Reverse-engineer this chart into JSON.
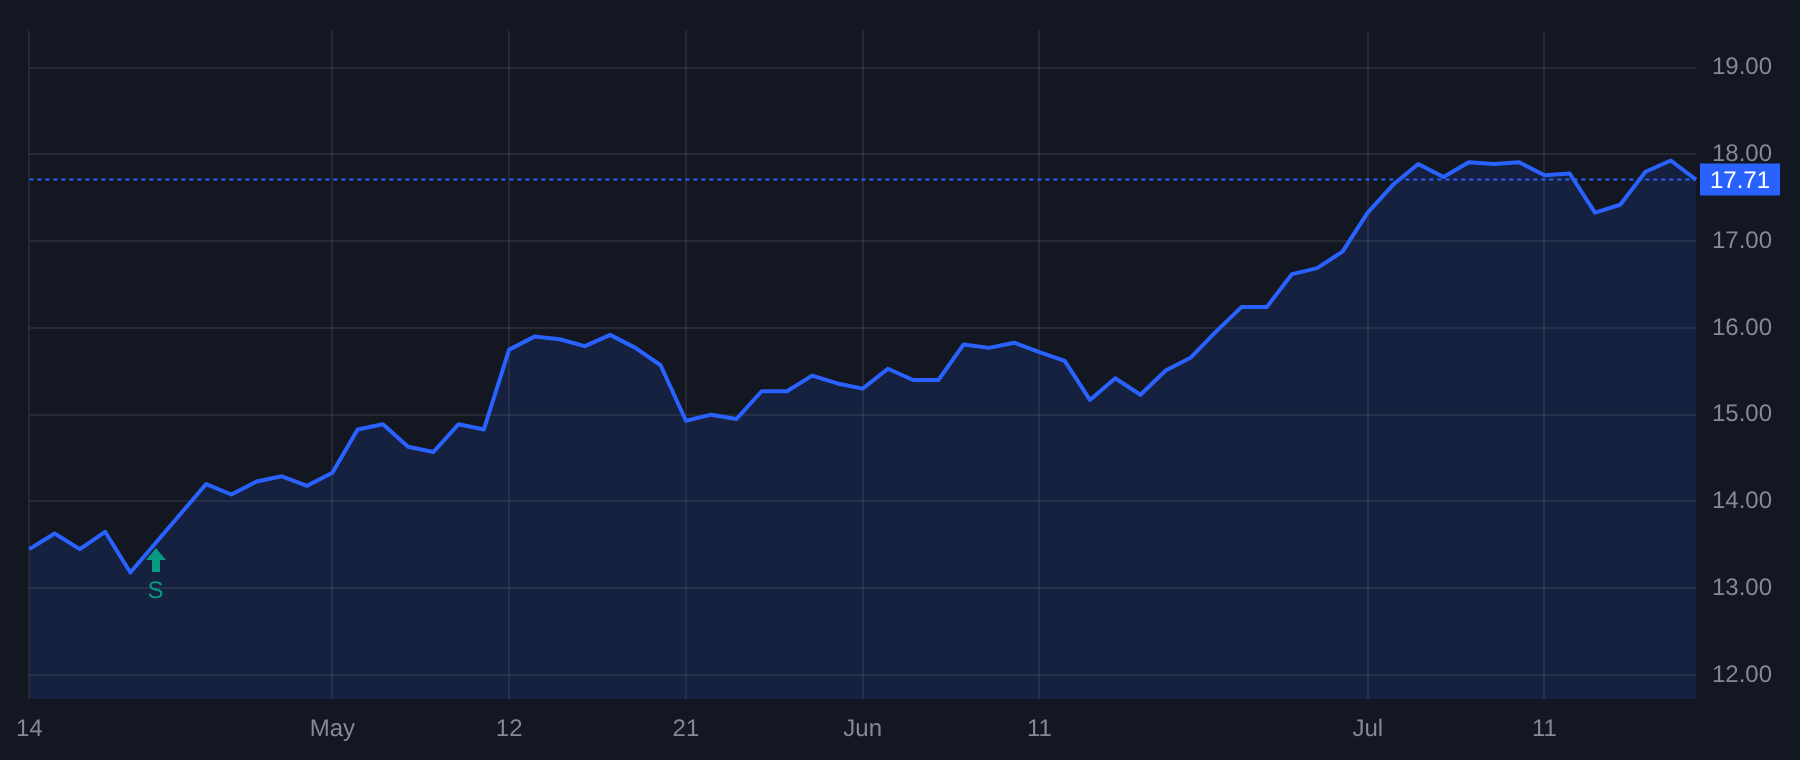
{
  "chart_data": {
    "type": "area",
    "categories": [
      "14",
      null,
      null,
      null,
      null,
      null,
      null,
      null,
      null,
      null,
      null,
      null,
      "May",
      null,
      null,
      null,
      null,
      null,
      null,
      "12",
      null,
      null,
      null,
      null,
      null,
      null,
      "21",
      null,
      null,
      null,
      null,
      null,
      null,
      "Jun",
      null,
      null,
      null,
      null,
      null,
      null,
      "11",
      null,
      null,
      null,
      null,
      null,
      null,
      null,
      null,
      null,
      null,
      null,
      null,
      "Jul",
      null,
      null,
      null,
      null,
      null,
      null,
      "11",
      null,
      null,
      null,
      null,
      null,
      null
    ],
    "series": [
      {
        "color": "#2962ff",
        "values": [
          13.45,
          13.63,
          13.45,
          13.65,
          13.18,
          13.52,
          13.86,
          14.2,
          14.08,
          14.23,
          14.29,
          14.18,
          14.33,
          14.83,
          14.89,
          14.63,
          14.57,
          14.89,
          14.83,
          15.75,
          15.9,
          15.87,
          15.79,
          15.92,
          15.77,
          15.57,
          14.93,
          15.0,
          14.95,
          15.27,
          15.27,
          15.45,
          15.36,
          15.3,
          15.53,
          15.4,
          15.4,
          15.81,
          15.77,
          15.83,
          15.72,
          15.62,
          15.17,
          15.42,
          15.23,
          15.51,
          15.66,
          15.96,
          16.24,
          16.24,
          16.62,
          16.69,
          16.88,
          17.33,
          17.65,
          17.89,
          17.74,
          17.91,
          17.89,
          17.91,
          17.76,
          17.78,
          17.33,
          17.42,
          17.8,
          17.93,
          17.71
        ]
      }
    ],
    "ylim": [
      11.72,
      19.43
    ],
    "yticks": [
      {
        "value": 12,
        "label": "12.00"
      },
      {
        "value": 13,
        "label": "13.00"
      },
      {
        "value": 14,
        "label": "14.00"
      },
      {
        "value": 15,
        "label": "15.00"
      },
      {
        "value": 16,
        "label": "16.00"
      },
      {
        "value": 17,
        "label": "17.00"
      },
      {
        "value": 18,
        "label": "18.00"
      },
      {
        "value": 19,
        "label": "19.00"
      }
    ],
    "ref_lines": [
      {
        "axis": "y",
        "value": 17.71,
        "label": "17.71",
        "color": "#2962ff",
        "line_style": "dotted"
      }
    ],
    "annotations": [
      "S"
    ],
    "grid": true,
    "legend": false,
    "marker": "none",
    "line_style": "solid"
  }
}
